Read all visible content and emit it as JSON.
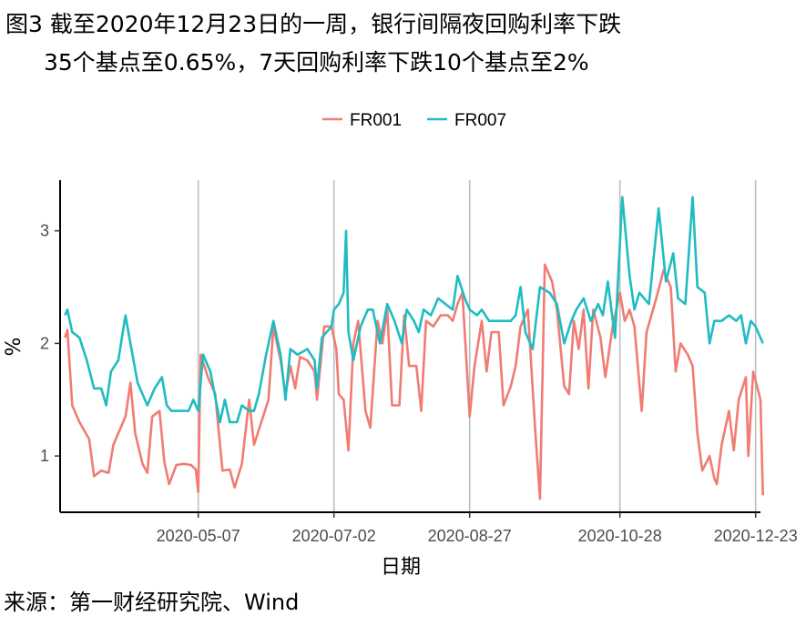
{
  "title_line1": "图3  截至2020年12月23日的一周，银行间隔夜回购利率下跌",
  "title_line2": "35个基点至0.65%，7天回购利率下跌10个基点至2%",
  "source": "来源：第一财经研究院、Wind",
  "colors": {
    "FR001": "#f07c74",
    "FR007": "#1fbcc2"
  },
  "chart_data": {
    "type": "line",
    "title": "",
    "xlabel": "日期",
    "ylabel": "%",
    "xlim": [
      "2020-03-11",
      "2020-12-25"
    ],
    "ylim": [
      0.5,
      3.45
    ],
    "y_ticks": [
      1,
      2,
      3
    ],
    "x_ticks": [
      "2020-05-07",
      "2020-07-02",
      "2020-08-27",
      "2020-10-28",
      "2020-12-23"
    ],
    "grid": "vertical-major",
    "legend": "top-center",
    "series": [
      {
        "name": "FR001",
        "points": [
          [
            "2020-03-13",
            2.05
          ],
          [
            "2020-03-14",
            2.12
          ],
          [
            "2020-03-16",
            1.45
          ],
          [
            "2020-03-19",
            1.3
          ],
          [
            "2020-03-23",
            1.15
          ],
          [
            "2020-03-25",
            0.82
          ],
          [
            "2020-03-28",
            0.87
          ],
          [
            "2020-03-31",
            0.85
          ],
          [
            "2020-04-02",
            1.1
          ],
          [
            "2020-04-07",
            1.35
          ],
          [
            "2020-04-09",
            1.65
          ],
          [
            "2020-04-11",
            1.2
          ],
          [
            "2020-04-14",
            0.93
          ],
          [
            "2020-04-16",
            0.85
          ],
          [
            "2020-04-18",
            1.35
          ],
          [
            "2020-04-21",
            1.4
          ],
          [
            "2020-04-23",
            0.95
          ],
          [
            "2020-04-25",
            0.75
          ],
          [
            "2020-04-28",
            0.92
          ],
          [
            "2020-05-01",
            0.93
          ],
          [
            "2020-05-04",
            0.92
          ],
          [
            "2020-05-06",
            0.88
          ],
          [
            "2020-05-07",
            0.68
          ],
          [
            "2020-05-08",
            1.9
          ],
          [
            "2020-05-11",
            1.7
          ],
          [
            "2020-05-14",
            1.55
          ],
          [
            "2020-05-17",
            0.87
          ],
          [
            "2020-05-20",
            0.88
          ],
          [
            "2020-05-22",
            0.72
          ],
          [
            "2020-05-25",
            0.93
          ],
          [
            "2020-05-28",
            1.5
          ],
          [
            "2020-05-30",
            1.1
          ],
          [
            "2020-06-02",
            1.3
          ],
          [
            "2020-06-05",
            1.5
          ],
          [
            "2020-06-07",
            2.15
          ],
          [
            "2020-06-10",
            1.85
          ],
          [
            "2020-06-12",
            1.55
          ],
          [
            "2020-06-14",
            1.8
          ],
          [
            "2020-06-16",
            1.6
          ],
          [
            "2020-06-18",
            1.88
          ],
          [
            "2020-06-21",
            1.85
          ],
          [
            "2020-06-24",
            1.75
          ],
          [
            "2020-06-25",
            1.5
          ],
          [
            "2020-06-28",
            2.15
          ],
          [
            "2020-07-01",
            2.15
          ],
          [
            "2020-07-03",
            1.95
          ],
          [
            "2020-07-04",
            1.55
          ],
          [
            "2020-07-06",
            1.5
          ],
          [
            "2020-07-08",
            1.05
          ],
          [
            "2020-07-10",
            2.0
          ],
          [
            "2020-07-12",
            2.2
          ],
          [
            "2020-07-15",
            1.4
          ],
          [
            "2020-07-17",
            1.25
          ],
          [
            "2020-07-20",
            2.2
          ],
          [
            "2020-07-22",
            2.0
          ],
          [
            "2020-07-24",
            2.3
          ],
          [
            "2020-07-26",
            1.45
          ],
          [
            "2020-07-29",
            1.45
          ],
          [
            "2020-07-31",
            2.25
          ],
          [
            "2020-08-02",
            1.8
          ],
          [
            "2020-08-05",
            1.8
          ],
          [
            "2020-08-07",
            1.4
          ],
          [
            "2020-08-09",
            2.2
          ],
          [
            "2020-08-12",
            2.15
          ],
          [
            "2020-08-15",
            2.25
          ],
          [
            "2020-08-18",
            2.25
          ],
          [
            "2020-08-20",
            2.2
          ],
          [
            "2020-08-22",
            2.35
          ],
          [
            "2020-08-24",
            2.45
          ],
          [
            "2020-08-27",
            1.35
          ],
          [
            "2020-08-29",
            1.8
          ],
          [
            "2020-09-01",
            2.2
          ],
          [
            "2020-09-03",
            1.75
          ],
          [
            "2020-09-05",
            2.1
          ],
          [
            "2020-09-08",
            2.1
          ],
          [
            "2020-09-10",
            1.45
          ],
          [
            "2020-09-13",
            1.62
          ],
          [
            "2020-09-15",
            1.8
          ],
          [
            "2020-09-17",
            2.15
          ],
          [
            "2020-09-20",
            2.3
          ],
          [
            "2020-09-23",
            1.25
          ],
          [
            "2020-09-25",
            0.62
          ],
          [
            "2020-09-27",
            2.7
          ],
          [
            "2020-09-30",
            2.55
          ],
          [
            "2020-10-02",
            2.3
          ],
          [
            "2020-10-05",
            1.62
          ],
          [
            "2020-10-07",
            1.55
          ],
          [
            "2020-10-09",
            2.2
          ],
          [
            "2020-10-11",
            1.95
          ],
          [
            "2020-10-13",
            2.3
          ],
          [
            "2020-10-15",
            1.6
          ],
          [
            "2020-10-17",
            2.3
          ],
          [
            "2020-10-20",
            2.05
          ],
          [
            "2020-10-22",
            1.7
          ],
          [
            "2020-10-25",
            2.15
          ],
          [
            "2020-10-28",
            2.45
          ],
          [
            "2020-10-30",
            2.2
          ],
          [
            "2020-11-01",
            2.3
          ],
          [
            "2020-11-03",
            2.15
          ],
          [
            "2020-11-06",
            1.4
          ],
          [
            "2020-11-08",
            2.1
          ],
          [
            "2020-11-12",
            2.4
          ],
          [
            "2020-11-15",
            2.65
          ],
          [
            "2020-11-18",
            2.5
          ],
          [
            "2020-11-20",
            1.75
          ],
          [
            "2020-11-22",
            2.0
          ],
          [
            "2020-11-25",
            1.9
          ],
          [
            "2020-11-27",
            1.8
          ],
          [
            "2020-11-29",
            1.2
          ],
          [
            "2020-12-01",
            0.87
          ],
          [
            "2020-12-04",
            1.0
          ],
          [
            "2020-12-06",
            0.8
          ],
          [
            "2020-12-07",
            0.75
          ],
          [
            "2020-12-09",
            1.1
          ],
          [
            "2020-12-12",
            1.4
          ],
          [
            "2020-12-14",
            1.05
          ],
          [
            "2020-12-16",
            1.5
          ],
          [
            "2020-12-19",
            1.7
          ],
          [
            "2020-12-20",
            1.0
          ],
          [
            "2020-12-22",
            1.75
          ],
          [
            "2020-12-25",
            1.5
          ],
          [
            "2020-12-26",
            0.65
          ]
        ]
      },
      {
        "name": "FR007",
        "points": [
          [
            "2020-03-13",
            2.25
          ],
          [
            "2020-03-14",
            2.3
          ],
          [
            "2020-03-16",
            2.1
          ],
          [
            "2020-03-19",
            2.05
          ],
          [
            "2020-03-22",
            1.85
          ],
          [
            "2020-03-25",
            1.6
          ],
          [
            "2020-03-28",
            1.6
          ],
          [
            "2020-03-30",
            1.45
          ],
          [
            "2020-04-01",
            1.75
          ],
          [
            "2020-04-04",
            1.85
          ],
          [
            "2020-04-07",
            2.25
          ],
          [
            "2020-04-09",
            2.0
          ],
          [
            "2020-04-12",
            1.65
          ],
          [
            "2020-04-14",
            1.55
          ],
          [
            "2020-04-16",
            1.45
          ],
          [
            "2020-04-19",
            1.6
          ],
          [
            "2020-04-22",
            1.7
          ],
          [
            "2020-04-24",
            1.45
          ],
          [
            "2020-04-26",
            1.4
          ],
          [
            "2020-04-29",
            1.4
          ],
          [
            "2020-05-01",
            1.4
          ],
          [
            "2020-05-03",
            1.4
          ],
          [
            "2020-05-05",
            1.5
          ],
          [
            "2020-05-07",
            1.4
          ],
          [
            "2020-05-09",
            1.9
          ],
          [
            "2020-05-12",
            1.75
          ],
          [
            "2020-05-16",
            1.3
          ],
          [
            "2020-05-18",
            1.5
          ],
          [
            "2020-05-20",
            1.3
          ],
          [
            "2020-05-23",
            1.3
          ],
          [
            "2020-05-25",
            1.45
          ],
          [
            "2020-05-28",
            1.4
          ],
          [
            "2020-05-30",
            1.4
          ],
          [
            "2020-06-01",
            1.55
          ],
          [
            "2020-06-04",
            1.9
          ],
          [
            "2020-06-07",
            2.2
          ],
          [
            "2020-06-10",
            1.9
          ],
          [
            "2020-06-12",
            1.5
          ],
          [
            "2020-06-14",
            1.95
          ],
          [
            "2020-06-17",
            1.9
          ],
          [
            "2020-06-21",
            1.95
          ],
          [
            "2020-06-24",
            1.85
          ],
          [
            "2020-06-25",
            1.6
          ],
          [
            "2020-06-27",
            2.05
          ],
          [
            "2020-07-01",
            2.15
          ],
          [
            "2020-07-02",
            2.3
          ],
          [
            "2020-07-04",
            2.35
          ],
          [
            "2020-07-06",
            2.45
          ],
          [
            "2020-07-07",
            3.0
          ],
          [
            "2020-07-08",
            2.1
          ],
          [
            "2020-07-10",
            1.85
          ],
          [
            "2020-07-13",
            2.15
          ],
          [
            "2020-07-16",
            2.3
          ],
          [
            "2020-07-18",
            2.3
          ],
          [
            "2020-07-21",
            2.0
          ],
          [
            "2020-07-24",
            2.35
          ],
          [
            "2020-07-27",
            2.2
          ],
          [
            "2020-07-30",
            2.0
          ],
          [
            "2020-08-01",
            2.3
          ],
          [
            "2020-08-04",
            2.2
          ],
          [
            "2020-08-06",
            2.1
          ],
          [
            "2020-08-08",
            2.3
          ],
          [
            "2020-08-11",
            2.25
          ],
          [
            "2020-08-14",
            2.4
          ],
          [
            "2020-08-17",
            2.35
          ],
          [
            "2020-08-20",
            2.3
          ],
          [
            "2020-08-22",
            2.6
          ],
          [
            "2020-08-25",
            2.4
          ],
          [
            "2020-08-27",
            2.3
          ],
          [
            "2020-08-30",
            2.25
          ],
          [
            "2020-09-01",
            2.3
          ],
          [
            "2020-09-04",
            2.2
          ],
          [
            "2020-09-07",
            2.2
          ],
          [
            "2020-09-10",
            2.2
          ],
          [
            "2020-09-13",
            2.2
          ],
          [
            "2020-09-15",
            2.25
          ],
          [
            "2020-09-17",
            2.5
          ],
          [
            "2020-09-19",
            2.1
          ],
          [
            "2020-09-22",
            1.95
          ],
          [
            "2020-09-25",
            2.5
          ],
          [
            "2020-09-29",
            2.45
          ],
          [
            "2020-10-02",
            2.35
          ],
          [
            "2020-10-05",
            2.0
          ],
          [
            "2020-10-08",
            2.2
          ],
          [
            "2020-10-10",
            2.3
          ],
          [
            "2020-10-13",
            2.4
          ],
          [
            "2020-10-16",
            2.2
          ],
          [
            "2020-10-19",
            2.35
          ],
          [
            "2020-10-21",
            2.25
          ],
          [
            "2020-10-23",
            2.55
          ],
          [
            "2020-10-26",
            2.05
          ],
          [
            "2020-10-29",
            3.3
          ],
          [
            "2020-11-01",
            2.6
          ],
          [
            "2020-11-03",
            2.3
          ],
          [
            "2020-11-05",
            2.45
          ],
          [
            "2020-11-09",
            2.35
          ],
          [
            "2020-11-13",
            3.2
          ],
          [
            "2020-11-16",
            2.55
          ],
          [
            "2020-11-19",
            2.8
          ],
          [
            "2020-11-21",
            2.4
          ],
          [
            "2020-11-24",
            2.35
          ],
          [
            "2020-11-27",
            3.3
          ],
          [
            "2020-11-29",
            2.5
          ],
          [
            "2020-12-02",
            2.45
          ],
          [
            "2020-12-04",
            2.0
          ],
          [
            "2020-12-06",
            2.2
          ],
          [
            "2020-12-09",
            2.2
          ],
          [
            "2020-12-12",
            2.25
          ],
          [
            "2020-12-15",
            2.2
          ],
          [
            "2020-12-17",
            2.25
          ],
          [
            "2020-12-19",
            2.0
          ],
          [
            "2020-12-21",
            2.2
          ],
          [
            "2020-12-23",
            2.15
          ],
          [
            "2020-12-24",
            2.1
          ],
          [
            "2020-12-26",
            2.0
          ]
        ]
      }
    ]
  }
}
